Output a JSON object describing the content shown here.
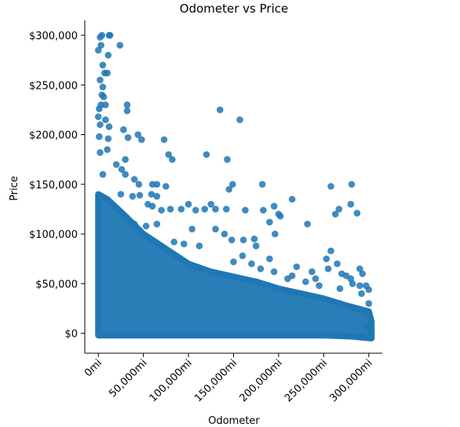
{
  "chart_data": {
    "type": "scatter",
    "title": "Odometer vs Price",
    "xlabel": "Odometer",
    "ylabel": "Price",
    "xlim": [
      -15000,
      315000
    ],
    "ylim": [
      -20000,
      315000
    ],
    "x_ticks": [
      {
        "value": 0,
        "label": "0mi"
      },
      {
        "value": 50000,
        "label": "50,000mi"
      },
      {
        "value": 100000,
        "label": "100,000mi"
      },
      {
        "value": 150000,
        "label": "150,000mi"
      },
      {
        "value": 200000,
        "label": "200,000mi"
      },
      {
        "value": 250000,
        "label": "250,000mi"
      },
      {
        "value": 300000,
        "label": "300,000mi"
      }
    ],
    "y_ticks": [
      {
        "value": 0,
        "label": "$0"
      },
      {
        "value": 50000,
        "label": "$50,000"
      },
      {
        "value": 100000,
        "label": "$100,000"
      },
      {
        "value": 150000,
        "label": "$150,000"
      },
      {
        "value": 200000,
        "label": "$200,000"
      },
      {
        "value": 250000,
        "label": "$250,000"
      },
      {
        "value": 300000,
        "label": "$300,000"
      }
    ],
    "grid": false,
    "color": "#1f77b4",
    "dense_region": [
      [
        0,
        0
      ],
      [
        0,
        140000
      ],
      [
        10000,
        135000
      ],
      [
        30000,
        118000
      ],
      [
        50000,
        100000
      ],
      [
        75000,
        85000
      ],
      [
        100000,
        70000
      ],
      [
        125000,
        62000
      ],
      [
        150000,
        57000
      ],
      [
        175000,
        52000
      ],
      [
        200000,
        45000
      ],
      [
        225000,
        40000
      ],
      [
        250000,
        35000
      ],
      [
        275000,
        28000
      ],
      [
        300000,
        22000
      ],
      [
        303000,
        12000
      ],
      [
        303000,
        -5000
      ],
      [
        280000,
        -3000
      ],
      [
        250000,
        -2000
      ],
      [
        0,
        -2000
      ]
    ],
    "points": [
      [
        2000,
        298000
      ],
      [
        4000,
        300000
      ],
      [
        12000,
        300000
      ],
      [
        13000,
        300000
      ],
      [
        24000,
        290000
      ],
      [
        0,
        285000
      ],
      [
        3000,
        290000
      ],
      [
        11000,
        280000
      ],
      [
        5000,
        270000
      ],
      [
        7000,
        262000
      ],
      [
        10000,
        262000
      ],
      [
        2000,
        255000
      ],
      [
        5000,
        248000
      ],
      [
        4000,
        240000
      ],
      [
        6000,
        238000
      ],
      [
        3000,
        230000
      ],
      [
        8000,
        230000
      ],
      [
        1000,
        226000
      ],
      [
        0,
        218000
      ],
      [
        32000,
        230000
      ],
      [
        32000,
        224000
      ],
      [
        8000,
        215000
      ],
      [
        2000,
        210000
      ],
      [
        12000,
        208000
      ],
      [
        28000,
        205000
      ],
      [
        33000,
        197000
      ],
      [
        11000,
        196000
      ],
      [
        1000,
        198000
      ],
      [
        44000,
        200000
      ],
      [
        48000,
        195000
      ],
      [
        73000,
        195000
      ],
      [
        135000,
        225000
      ],
      [
        157000,
        215000
      ],
      [
        30000,
        175000
      ],
      [
        78000,
        180000
      ],
      [
        82000,
        175000
      ],
      [
        120000,
        180000
      ],
      [
        143000,
        175000
      ],
      [
        2000,
        182000
      ],
      [
        10000,
        185000
      ],
      [
        20000,
        170000
      ],
      [
        26000,
        165000
      ],
      [
        5000,
        160000
      ],
      [
        30000,
        160000
      ],
      [
        40000,
        155000
      ],
      [
        45000,
        150000
      ],
      [
        60000,
        150000
      ],
      [
        65000,
        150000
      ],
      [
        75000,
        148000
      ],
      [
        145000,
        145000
      ],
      [
        149000,
        150000
      ],
      [
        182000,
        150000
      ],
      [
        258000,
        148000
      ],
      [
        281000,
        150000
      ],
      [
        215000,
        135000
      ],
      [
        59000,
        140000
      ],
      [
        65000,
        138000
      ],
      [
        25000,
        140000
      ],
      [
        38000,
        138000
      ],
      [
        46000,
        139000
      ],
      [
        118000,
        125000
      ],
      [
        142000,
        125000
      ],
      [
        163000,
        124000
      ],
      [
        183000,
        124000
      ],
      [
        195000,
        128000
      ],
      [
        200000,
        120000
      ],
      [
        202000,
        118000
      ],
      [
        263000,
        120000
      ],
      [
        267000,
        125000
      ],
      [
        280000,
        130000
      ],
      [
        287000,
        121000
      ],
      [
        55000,
        130000
      ],
      [
        60000,
        128000
      ],
      [
        70000,
        124000
      ],
      [
        80000,
        125000
      ],
      [
        92000,
        125000
      ],
      [
        100000,
        130000
      ],
      [
        108000,
        124000
      ],
      [
        125000,
        130000
      ],
      [
        130000,
        125000
      ],
      [
        190000,
        112000
      ],
      [
        232000,
        110000
      ],
      [
        196000,
        100000
      ],
      [
        173000,
        95000
      ],
      [
        161000,
        94000
      ],
      [
        148000,
        94000
      ],
      [
        140000,
        100000
      ],
      [
        130000,
        105000
      ],
      [
        104000,
        105000
      ],
      [
        65000,
        110000
      ],
      [
        53000,
        108000
      ],
      [
        40000,
        110000
      ],
      [
        258000,
        83000
      ],
      [
        253000,
        75000
      ],
      [
        265000,
        70000
      ],
      [
        255000,
        65000
      ],
      [
        275000,
        58000
      ],
      [
        282000,
        50000
      ],
      [
        290000,
        48000
      ],
      [
        297000,
        48000
      ],
      [
        290000,
        65000
      ],
      [
        293000,
        60000
      ],
      [
        237000,
        62000
      ],
      [
        215000,
        58000
      ],
      [
        220000,
        67000
      ],
      [
        241000,
        55000
      ],
      [
        270000,
        60000
      ],
      [
        280000,
        55000
      ],
      [
        300000,
        44000
      ],
      [
        190000,
        75000
      ],
      [
        180000,
        65000
      ],
      [
        170000,
        70000
      ],
      [
        160000,
        78000
      ],
      [
        150000,
        72000
      ],
      [
        175000,
        88000
      ],
      [
        112000,
        88000
      ],
      [
        95000,
        90000
      ],
      [
        84000,
        92000
      ],
      [
        300000,
        30000
      ],
      [
        295000,
        20000
      ],
      [
        301000,
        5000
      ],
      [
        297000,
        8000
      ],
      [
        292000,
        40000
      ],
      [
        268000,
        45000
      ],
      [
        245000,
        48000
      ],
      [
        230000,
        52000
      ],
      [
        210000,
        55000
      ],
      [
        195000,
        62000
      ]
    ]
  }
}
